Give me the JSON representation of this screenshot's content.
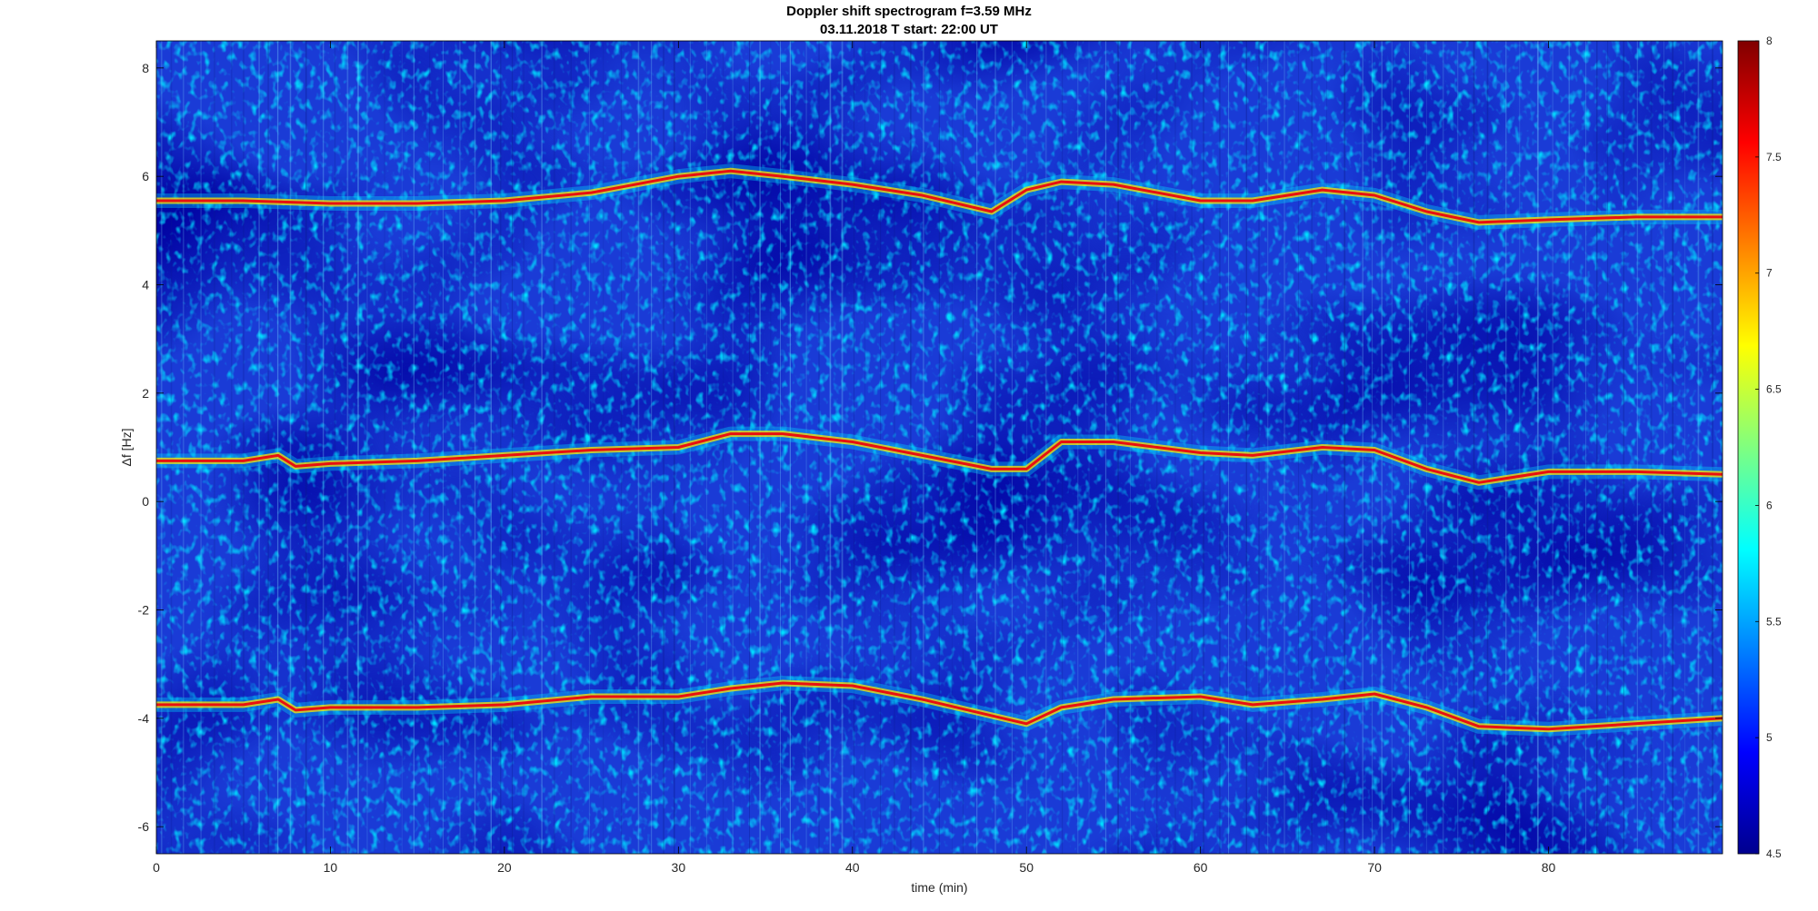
{
  "figure": {
    "title_lines": [
      "Doppler shift spectrogram f=3.59 MHz",
      "03.11.2018   T start: 22:00 UT"
    ]
  },
  "chart_data": {
    "type": "heatmap",
    "title": "Doppler shift spectrogram f=3.59 MHz",
    "subtitle": "03.11.2018   T start: 22:00 UT",
    "xlabel": "time (min)",
    "ylabel": "Δf [Hz]",
    "xlim": [
      0,
      90
    ],
    "ylim": [
      -6.5,
      8.5
    ],
    "x_ticks": [
      0,
      10,
      20,
      30,
      40,
      50,
      60,
      70,
      80
    ],
    "y_ticks": [
      -6,
      -4,
      -2,
      0,
      2,
      4,
      6,
      8
    ],
    "colorbar": {
      "range": [
        4.5,
        8
      ],
      "ticks": [
        4.5,
        5,
        5.5,
        6,
        6.5,
        7,
        7.5,
        8
      ],
      "colormap": "jet"
    },
    "traces": [
      {
        "time": [
          0,
          5,
          10,
          15,
          20,
          25,
          30,
          33,
          36,
          40,
          44,
          48,
          50,
          52,
          55,
          60,
          63,
          67,
          70,
          73,
          76,
          80,
          85,
          90
        ],
        "freq": [
          5.55,
          5.55,
          5.5,
          5.5,
          5.55,
          5.7,
          6.0,
          6.1,
          6.0,
          5.85,
          5.65,
          5.35,
          5.75,
          5.9,
          5.85,
          5.55,
          5.55,
          5.75,
          5.65,
          5.35,
          5.15,
          5.2,
          5.25,
          5.25
        ]
      },
      {
        "time": [
          0,
          5,
          7,
          8,
          10,
          15,
          20,
          25,
          30,
          33,
          36,
          40,
          44,
          48,
          50,
          52,
          55,
          60,
          63,
          67,
          70,
          73,
          76,
          80,
          85,
          90
        ],
        "freq": [
          0.75,
          0.75,
          0.85,
          0.65,
          0.7,
          0.75,
          0.85,
          0.95,
          1.0,
          1.25,
          1.25,
          1.1,
          0.85,
          0.6,
          0.6,
          1.1,
          1.1,
          0.9,
          0.85,
          1.0,
          0.95,
          0.6,
          0.35,
          0.55,
          0.55,
          0.5
        ]
      },
      {
        "time": [
          0,
          5,
          7,
          8,
          10,
          15,
          20,
          25,
          30,
          33,
          36,
          40,
          44,
          48,
          50,
          52,
          55,
          60,
          63,
          67,
          70,
          73,
          76,
          80,
          85,
          90
        ],
        "freq": [
          -3.75,
          -3.75,
          -3.65,
          -3.85,
          -3.8,
          -3.8,
          -3.75,
          -3.6,
          -3.6,
          -3.45,
          -3.35,
          -3.4,
          -3.65,
          -3.95,
          -4.1,
          -3.8,
          -3.65,
          -3.6,
          -3.75,
          -3.65,
          -3.55,
          -3.8,
          -4.15,
          -4.2,
          -4.1,
          -4.0
        ]
      }
    ]
  }
}
